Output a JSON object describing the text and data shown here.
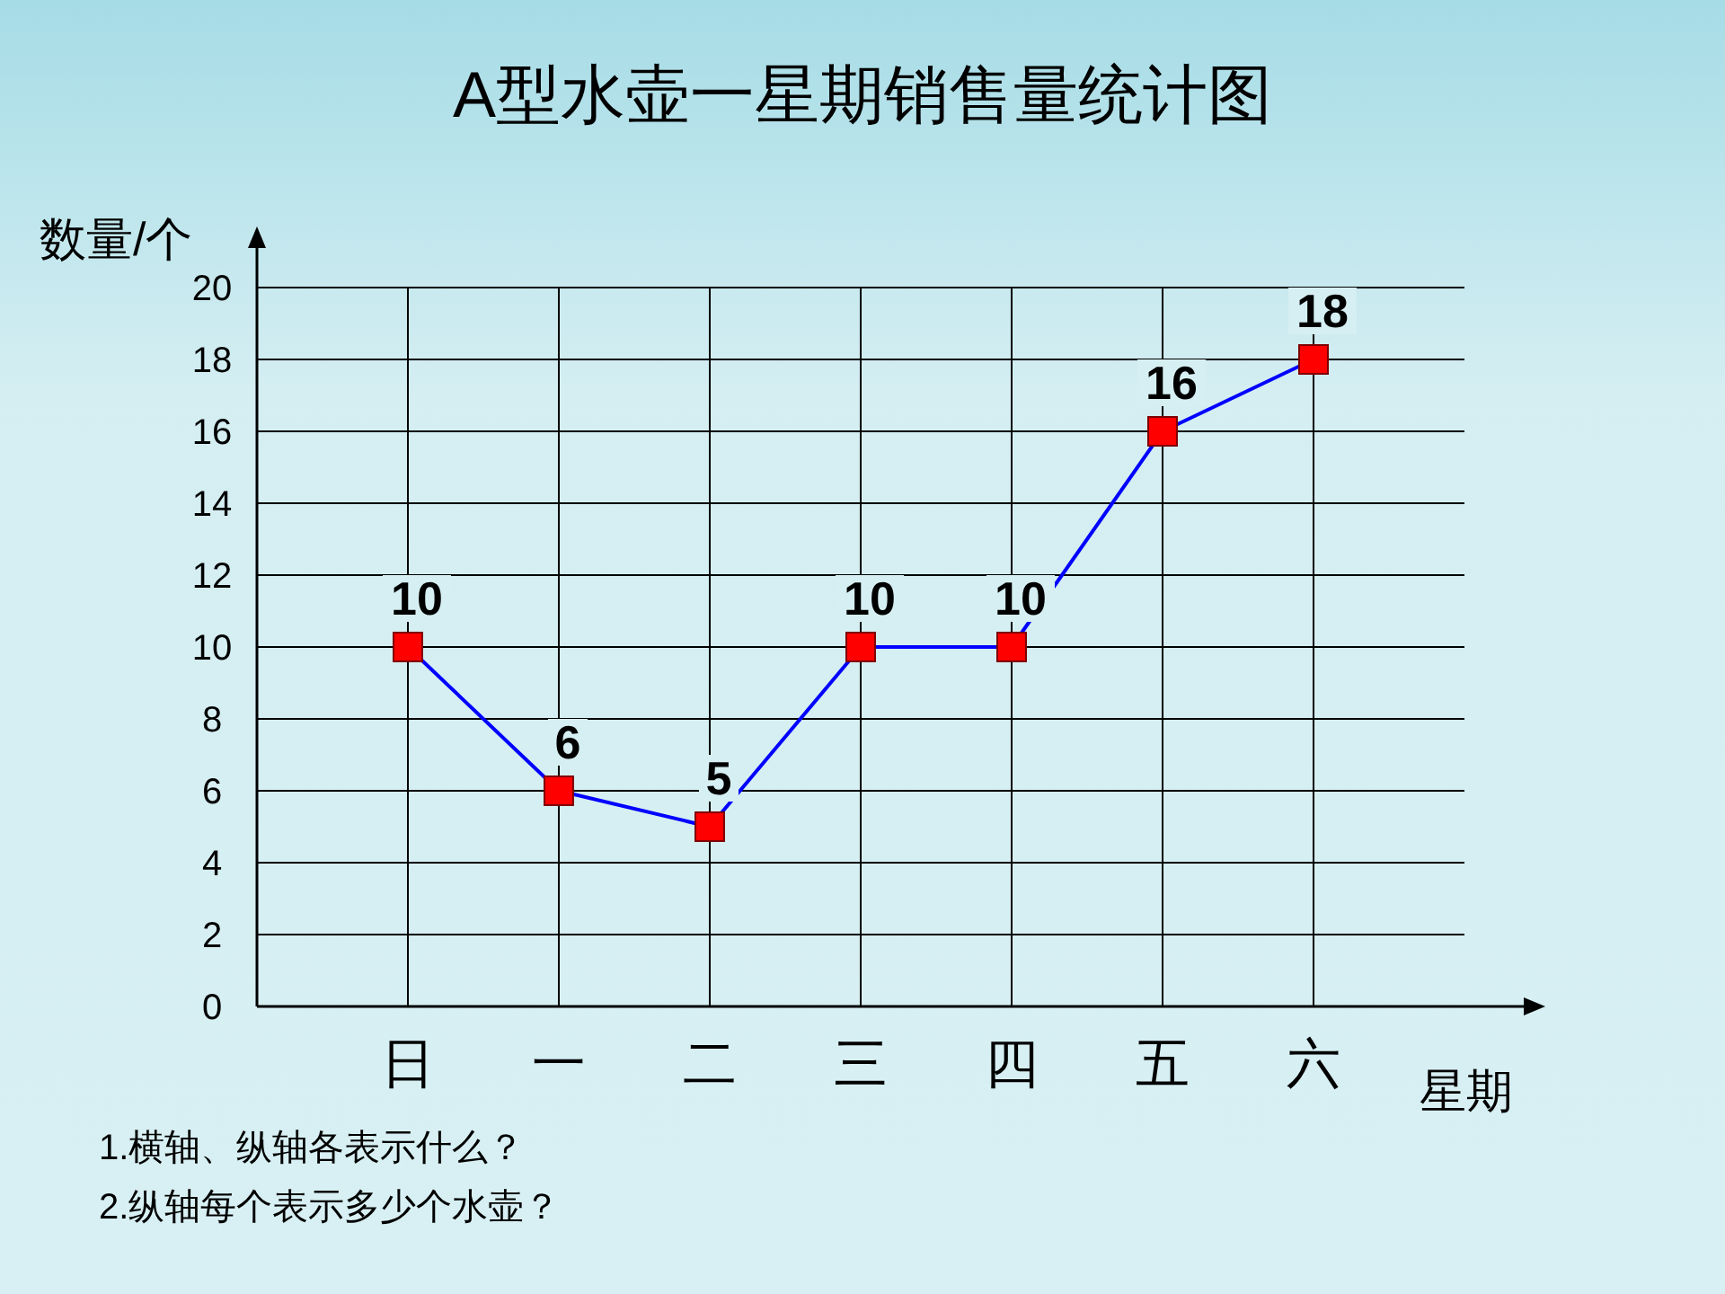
{
  "chart_data": {
    "type": "line",
    "title": "A型水壶一星期销售量统计图",
    "ylabel": "数量/个",
    "xlabel": "星期",
    "categories": [
      "日",
      "一",
      "二",
      "三",
      "四",
      "五",
      "六"
    ],
    "series": [
      {
        "color": "#0000ff",
        "colors": [
          "#ff0000",
          "#ff0000",
          "#ff0000",
          "#ff0000",
          "#ff0000",
          "#ff0000",
          "#ff0000"
        ],
        "values": [
          10,
          6,
          5,
          10,
          10,
          16,
          18
        ]
      }
    ],
    "ylim": [
      0,
      20
    ],
    "yticks": [
      0,
      2,
      4,
      6,
      8,
      10,
      12,
      14,
      16,
      18,
      20
    ],
    "grid": true,
    "marker": "square",
    "data_labels": true,
    "annotations": [
      "1.横轴、纵轴各表示什么？",
      "2.纵轴每个表示多少个水壶？"
    ]
  }
}
